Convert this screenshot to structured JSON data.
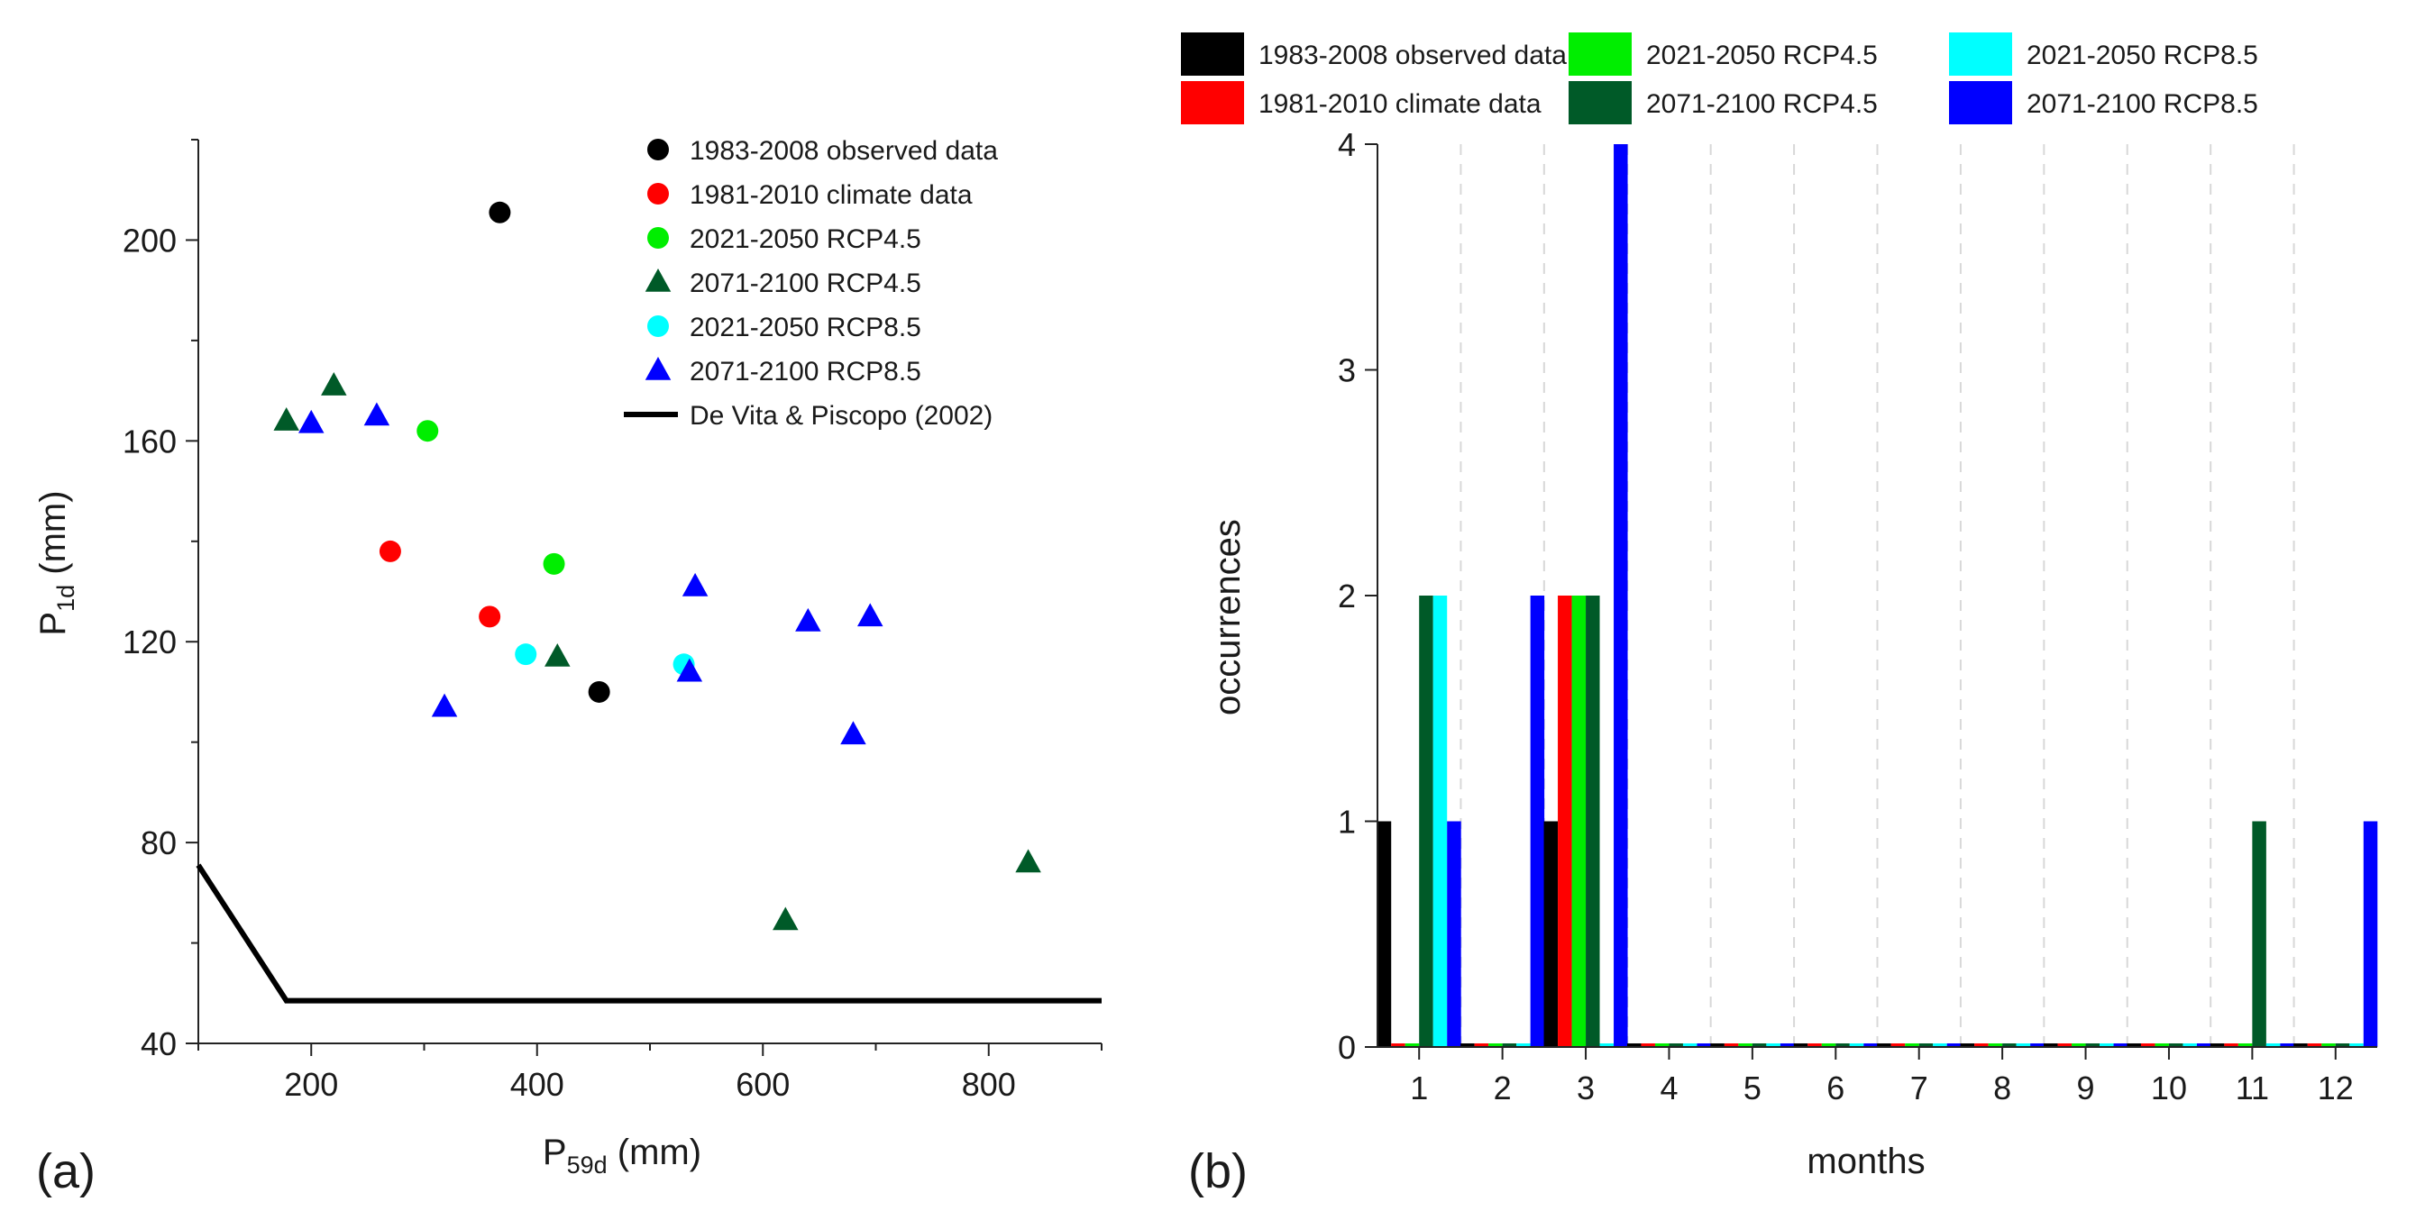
{
  "chart_data": [
    {
      "panel": "(a)",
      "type": "scatter",
      "xlabel": {
        "main": "P",
        "sub": "59d",
        "unit": " (mm)"
      },
      "ylabel": {
        "main": "P",
        "sub": "1d",
        "unit": " (mm)"
      },
      "xlim": [
        100,
        900
      ],
      "ylim": [
        40,
        220
      ],
      "xticks": [
        200,
        400,
        600,
        800
      ],
      "yticks": [
        40,
        80,
        120,
        160,
        200
      ],
      "grid": false,
      "legend_position": "top-right",
      "series": [
        {
          "name": "1983-2008 observed data",
          "marker": "circle",
          "color": "#000000",
          "points": [
            [
              367,
              205.5
            ],
            [
              455,
              110
            ]
          ]
        },
        {
          "name": "1981-2010 climate data",
          "marker": "circle",
          "color": "#ff0000",
          "points": [
            [
              270,
              138
            ],
            [
              358,
              125
            ]
          ]
        },
        {
          "name": "2021-2050 RCP4.5",
          "marker": "circle",
          "color": "#00ee00",
          "points": [
            [
              303,
              162
            ],
            [
              415,
              135.5
            ]
          ]
        },
        {
          "name": "2071-2100 RCP4.5",
          "marker": "triangle",
          "color": "#005a28",
          "points": [
            [
              178,
              164
            ],
            [
              220,
              171
            ],
            [
              418,
              117
            ],
            [
              620,
              64.5
            ],
            [
              835,
              76
            ]
          ]
        },
        {
          "name": "2021-2050 RCP8.5",
          "marker": "circle",
          "color": "#00ffff",
          "points": [
            [
              390,
              117.5
            ],
            [
              530,
              115.5
            ]
          ]
        },
        {
          "name": "2071-2100 RCP8.5",
          "marker": "triangle",
          "color": "#0000ff",
          "points": [
            [
              200,
              163.5
            ],
            [
              258,
              165
            ],
            [
              318,
              107
            ],
            [
              535,
              114
            ],
            [
              540,
              131
            ],
            [
              640,
              124
            ],
            [
              680,
              101.5
            ],
            [
              695,
              125
            ]
          ]
        }
      ],
      "lines": [
        {
          "name": "De Vita & Piscopo (2002)",
          "color": "#000000",
          "points": [
            [
              100,
              75.5
            ],
            [
              178,
              48.5
            ],
            [
              900,
              48.5
            ]
          ]
        }
      ]
    },
    {
      "panel": "(b)",
      "type": "bar",
      "xlabel": "months",
      "ylabel": "occurrences",
      "categories": [
        "1",
        "2",
        "3",
        "4",
        "5",
        "6",
        "7",
        "8",
        "9",
        "10",
        "11",
        "12"
      ],
      "ylim": [
        0,
        4
      ],
      "yticks": [
        0,
        1,
        2,
        3,
        4
      ],
      "grid": "vertical dashed",
      "legend_position": "top",
      "series": [
        {
          "name": "1983-2008 observed data",
          "color": "#000000",
          "values": [
            1,
            0,
            1,
            0,
            0,
            0,
            0,
            0,
            0,
            0,
            0,
            0
          ]
        },
        {
          "name": "1981-2010 climate data",
          "color": "#ff0000",
          "values": [
            0,
            0,
            2,
            0,
            0,
            0,
            0,
            0,
            0,
            0,
            0,
            0
          ]
        },
        {
          "name": "2021-2050 RCP4.5",
          "color": "#00ee00",
          "values": [
            0,
            0,
            2,
            0,
            0,
            0,
            0,
            0,
            0,
            0,
            0,
            0
          ]
        },
        {
          "name": "2071-2100 RCP4.5",
          "color": "#005a28",
          "values": [
            2,
            0,
            2,
            0,
            0,
            0,
            0,
            0,
            0,
            0,
            1,
            0
          ]
        },
        {
          "name": "2021-2050 RCP8.5",
          "color": "#00ffff",
          "values": [
            2,
            0,
            0,
            0,
            0,
            0,
            0,
            0,
            0,
            0,
            0,
            0
          ]
        },
        {
          "name": "2071-2100 RCP8.5",
          "color": "#0000ff",
          "values": [
            1,
            2,
            4,
            0,
            0,
            0,
            0,
            0,
            0,
            0,
            0,
            1
          ]
        }
      ]
    }
  ],
  "legend_a": [
    "1983-2008 observed data",
    "1981-2010 climate data",
    "2021-2050 RCP4.5",
    "2071-2100 RCP4.5",
    "2021-2050 RCP8.5",
    "2071-2100 RCP8.5",
    "De Vita & Piscopo (2002)"
  ],
  "legend_b": [
    "1983-2008 observed data",
    "1981-2010 climate data",
    "2021-2050 RCP4.5",
    "2071-2100 RCP4.5",
    "2021-2050 RCP8.5",
    "2071-2100 RCP8.5"
  ]
}
